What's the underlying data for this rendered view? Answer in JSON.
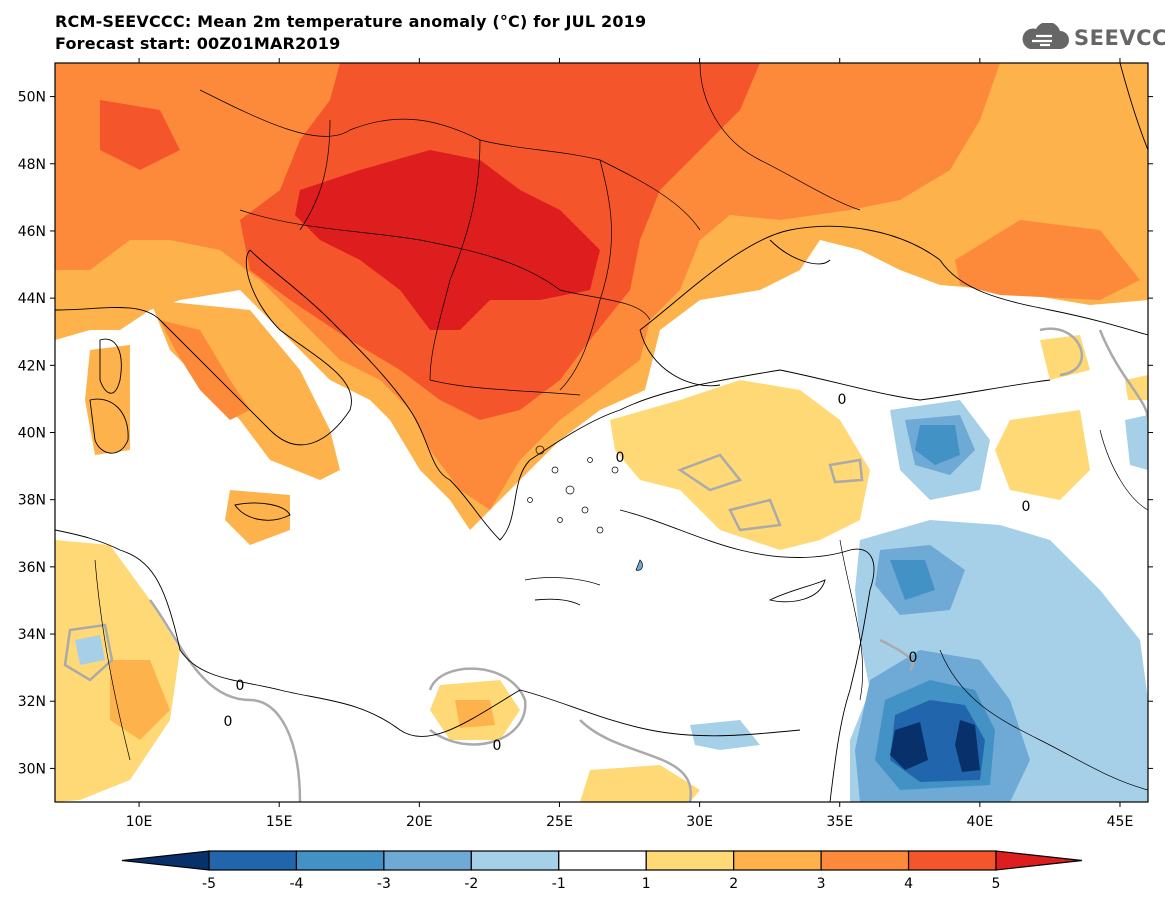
{
  "title": {
    "line1": "RCM-SEEVCCC: Mean 2m temperature anomaly (°C) for JUL 2019",
    "line2": "Forecast start: 00Z01MAR2019"
  },
  "logo": {
    "text": "SEEVCCC",
    "icon": "cloud-icon"
  },
  "map": {
    "lon_range": [
      7,
      46
    ],
    "lat_range": [
      29,
      51
    ],
    "lon_ticks": [
      "10E",
      "15E",
      "20E",
      "25E",
      "30E",
      "35E",
      "40E",
      "45E"
    ],
    "lat_ticks": [
      "50N",
      "48N",
      "46N",
      "44N",
      "42N",
      "40N",
      "38N",
      "36N",
      "34N",
      "32N",
      "30N"
    ],
    "contour_label": "0"
  },
  "colorbar": {
    "labels": [
      "-5",
      "-4",
      "-3",
      "-2",
      "-1",
      "1",
      "2",
      "3",
      "4",
      "5"
    ],
    "colors": [
      "#08306b",
      "#2166ac",
      "#4392c6",
      "#6fa9d6",
      "#a6cfe8",
      "#ffffff",
      "#fed976",
      "#fdb24b",
      "#fc8a3a",
      "#f5552a",
      "#de1e1e"
    ]
  }
}
